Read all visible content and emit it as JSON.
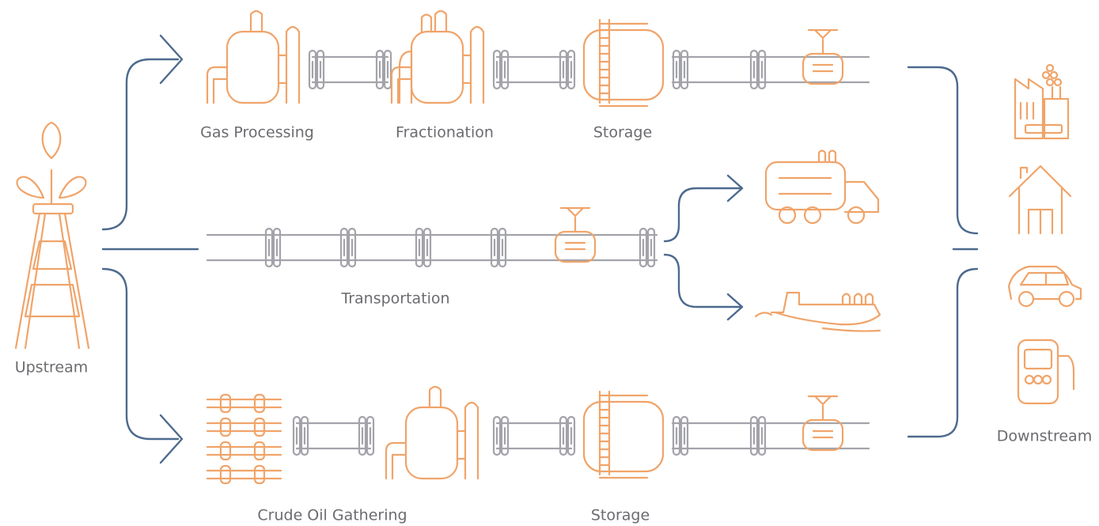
{
  "nodes": [
    {
      "label": "Upstream"
    },
    {
      "label": "Gas Processing"
    },
    {
      "label": "Fractionation"
    },
    {
      "label": "Storage"
    },
    {
      "label": "Transportation"
    },
    {
      "label": "Crude Oil Gathering"
    },
    {
      "label": "Storage"
    },
    {
      "label": "Downstream"
    }
  ]
}
